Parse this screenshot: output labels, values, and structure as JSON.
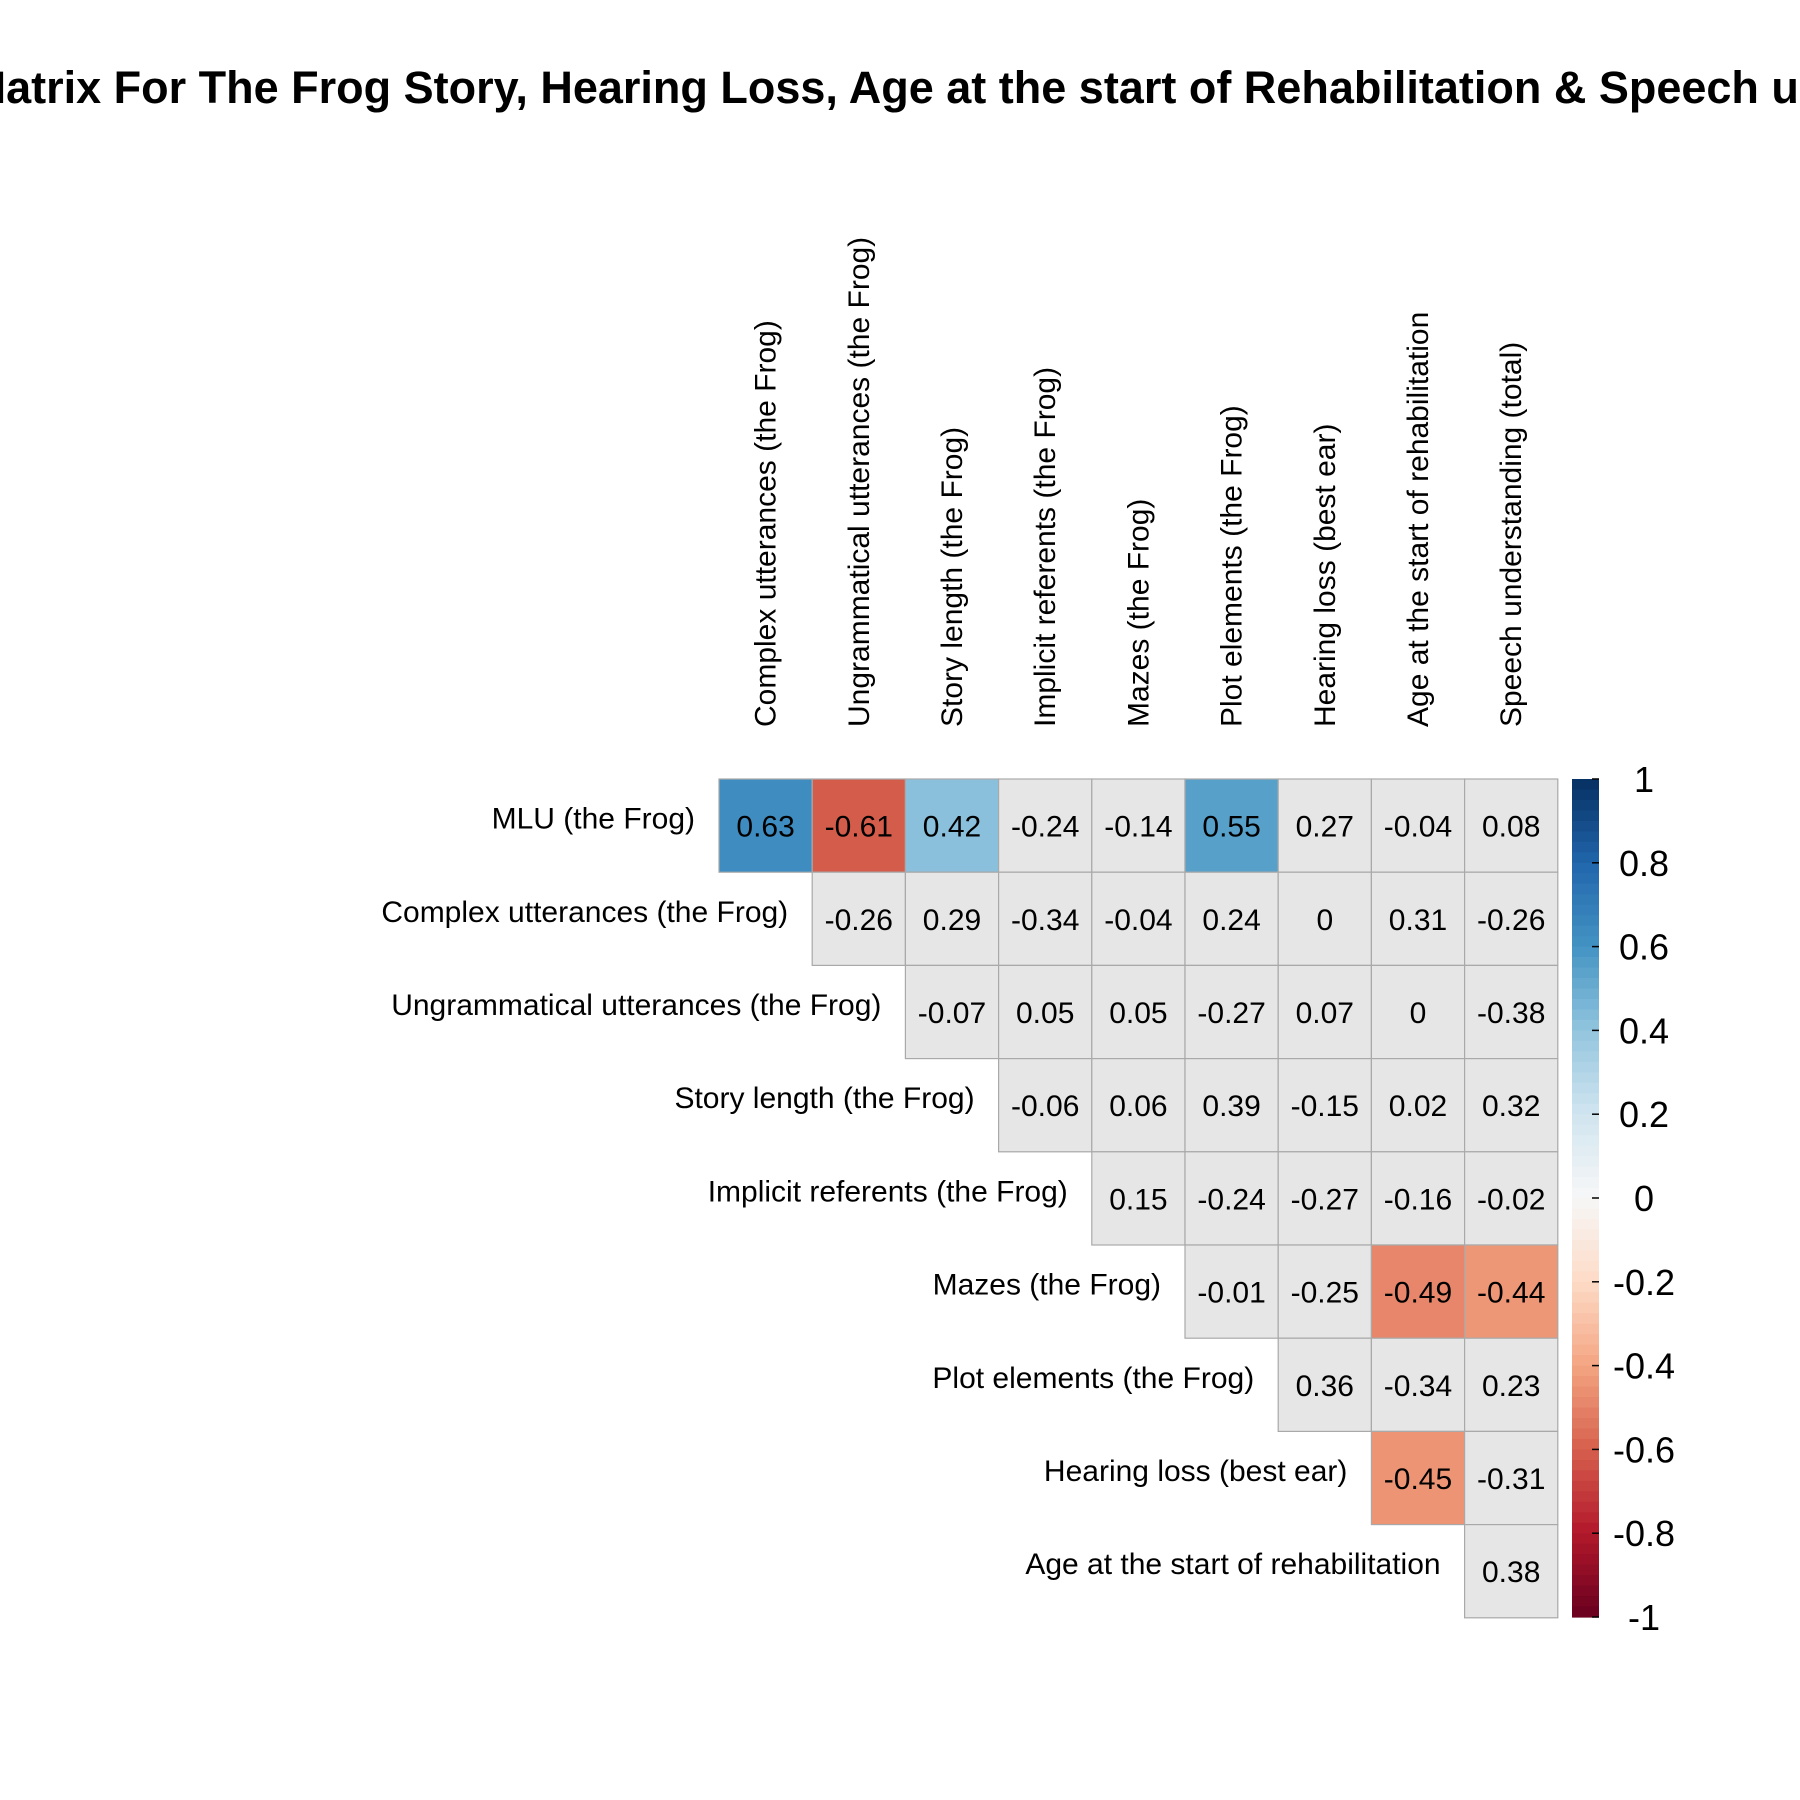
{
  "chart_data": {
    "type": "heatmap",
    "title": "Correlation Matrix For The Frog Story, Hearing Loss, Age at the start of Rehabilitation & Speech understanding",
    "row_labels": [
      "MLU (the Frog)",
      "Complex utterances (the Frog)",
      "Ungrammatical utterances (the Frog)",
      "Story length (the Frog)",
      "Implicit referents (the Frog)",
      "Mazes (the Frog)",
      "Plot elements (the Frog)",
      "Hearing loss (best ear)",
      "Age at the start of rehabilitation"
    ],
    "column_labels": [
      "Complex utterances (the Frog)",
      "Ungrammatical utterances (the Frog)",
      "Story length (the Frog)",
      "Implicit referents (the Frog)",
      "Mazes (the Frog)",
      "Plot elements (the Frog)",
      "Hearing loss (best ear)",
      "Age at the start of rehabilitation",
      "Speech understanding (total)"
    ],
    "values": [
      [
        0.63,
        -0.61,
        0.42,
        -0.24,
        -0.14,
        0.55,
        0.27,
        -0.04,
        0.08
      ],
      [
        null,
        -0.26,
        0.29,
        -0.34,
        -0.04,
        0.24,
        0,
        0.31,
        -0.26
      ],
      [
        null,
        null,
        -0.07,
        0.05,
        0.05,
        -0.27,
        0.07,
        0,
        -0.38
      ],
      [
        null,
        null,
        null,
        -0.06,
        0.06,
        0.39,
        -0.15,
        0.02,
        0.32
      ],
      [
        null,
        null,
        null,
        null,
        0.15,
        -0.24,
        -0.27,
        -0.16,
        -0.02
      ],
      [
        null,
        null,
        null,
        null,
        null,
        -0.01,
        -0.25,
        -0.49,
        -0.44
      ],
      [
        null,
        null,
        null,
        null,
        null,
        null,
        0.36,
        -0.34,
        0.23
      ],
      [
        null,
        null,
        null,
        null,
        null,
        null,
        null,
        -0.45,
        -0.31
      ],
      [
        null,
        null,
        null,
        null,
        null,
        null,
        null,
        null,
        0.38
      ]
    ],
    "value_labels": [
      [
        "0.63",
        "-0.61",
        "0.42",
        "-0.24",
        "-0.14",
        "0.55",
        "0.27",
        "-0.04",
        "0.08"
      ],
      [
        null,
        "-0.26",
        "0.29",
        "-0.34",
        "-0.04",
        "0.24",
        "0",
        "0.31",
        "-0.26"
      ],
      [
        null,
        null,
        "-0.07",
        "0.05",
        "0.05",
        "-0.27",
        "0.07",
        "0",
        "-0.38"
      ],
      [
        null,
        null,
        null,
        "-0.06",
        "0.06",
        "0.39",
        "-0.15",
        "0.02",
        "0.32"
      ],
      [
        null,
        null,
        null,
        null,
        "0.15",
        "-0.24",
        "-0.27",
        "-0.16",
        "-0.02"
      ],
      [
        null,
        null,
        null,
        null,
        null,
        "-0.01",
        "-0.25",
        "-0.49",
        "-0.44"
      ],
      [
        null,
        null,
        null,
        null,
        null,
        null,
        "0.36",
        "-0.34",
        "0.23"
      ],
      [
        null,
        null,
        null,
        null,
        null,
        null,
        null,
        "-0.45",
        "-0.31"
      ],
      [
        null,
        null,
        null,
        null,
        null,
        null,
        null,
        null,
        "0.38"
      ]
    ],
    "highlight_threshold": 0.4,
    "neutral_fill": "#e6e6e6",
    "colorscale": {
      "range": [
        -1,
        1
      ],
      "stops": [
        {
          "v": -1.0,
          "color": "#67001f"
        },
        {
          "v": -0.8,
          "color": "#b2182b"
        },
        {
          "v": -0.6,
          "color": "#d6604d"
        },
        {
          "v": -0.4,
          "color": "#f4a582"
        },
        {
          "v": -0.2,
          "color": "#fddbc7"
        },
        {
          "v": 0.0,
          "color": "#f7f7f7"
        },
        {
          "v": 0.2,
          "color": "#d1e5f0"
        },
        {
          "v": 0.4,
          "color": "#92c5de"
        },
        {
          "v": 0.6,
          "color": "#4393c3"
        },
        {
          "v": 0.8,
          "color": "#2166ac"
        },
        {
          "v": 1.0,
          "color": "#053061"
        }
      ]
    },
    "colorbar_ticks": [
      "1",
      "0.8",
      "0.6",
      "0.4",
      "0.2",
      "0",
      "-0.2",
      "-0.4",
      "-0.6",
      "-0.8",
      "-1"
    ],
    "legend_placement": "right",
    "grid": true
  }
}
